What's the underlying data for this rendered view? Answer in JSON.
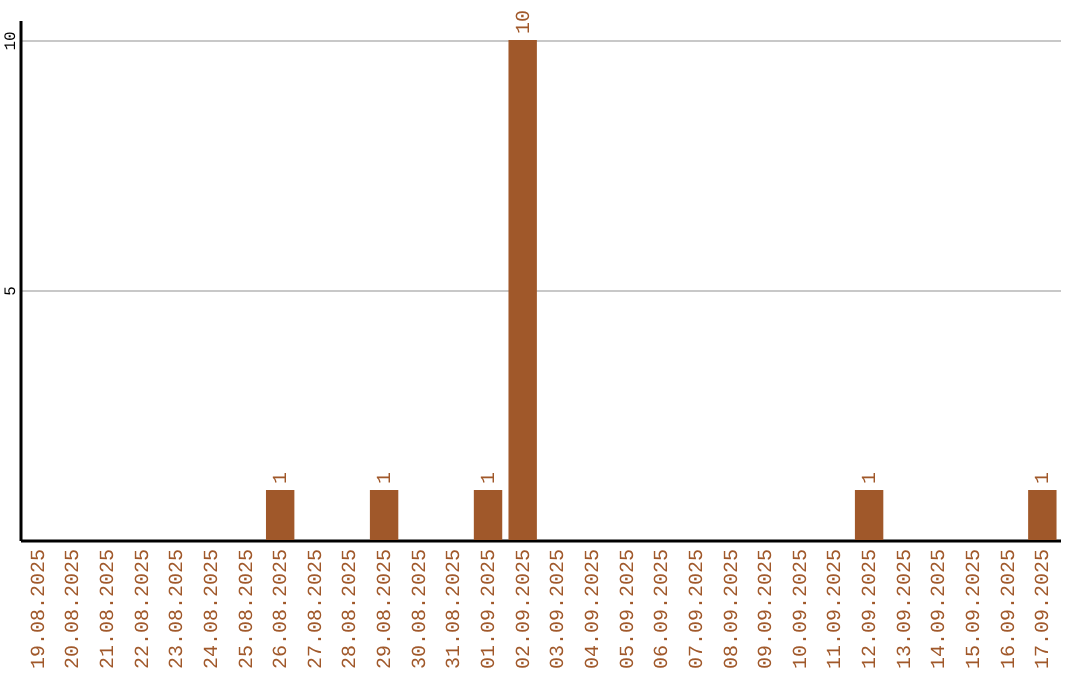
{
  "chart_data": {
    "type": "bar",
    "categories": [
      "19.08.2025",
      "20.08.2025",
      "21.08.2025",
      "22.08.2025",
      "23.08.2025",
      "24.08.2025",
      "25.08.2025",
      "26.08.2025",
      "27.08.2025",
      "28.08.2025",
      "29.08.2025",
      "30.08.2025",
      "31.08.2025",
      "01.09.2025",
      "02.09.2025",
      "03.09.2025",
      "04.09.2025",
      "05.09.2025",
      "06.09.2025",
      "07.09.2025",
      "08.09.2025",
      "09.09.2025",
      "10.09.2025",
      "11.09.2025",
      "12.09.2025",
      "13.09.2025",
      "14.09.2025",
      "15.09.2025",
      "16.09.2025",
      "17.09.2025"
    ],
    "values": [
      0,
      0,
      0,
      0,
      0,
      0,
      0,
      1,
      0,
      0,
      1,
      0,
      0,
      1,
      10,
      0,
      0,
      0,
      0,
      0,
      0,
      0,
      0,
      0,
      1,
      0,
      0,
      0,
      0,
      1
    ],
    "value_labels": [
      null,
      null,
      null,
      null,
      null,
      null,
      null,
      "1",
      null,
      null,
      "1",
      null,
      null,
      "1",
      "10",
      null,
      null,
      null,
      null,
      null,
      null,
      null,
      null,
      null,
      "1",
      null,
      null,
      null,
      null,
      "1"
    ],
    "color": "#a0582a",
    "ylim": [
      0,
      10.4
    ],
    "yticks": [
      5,
      10
    ],
    "grid": "y"
  }
}
